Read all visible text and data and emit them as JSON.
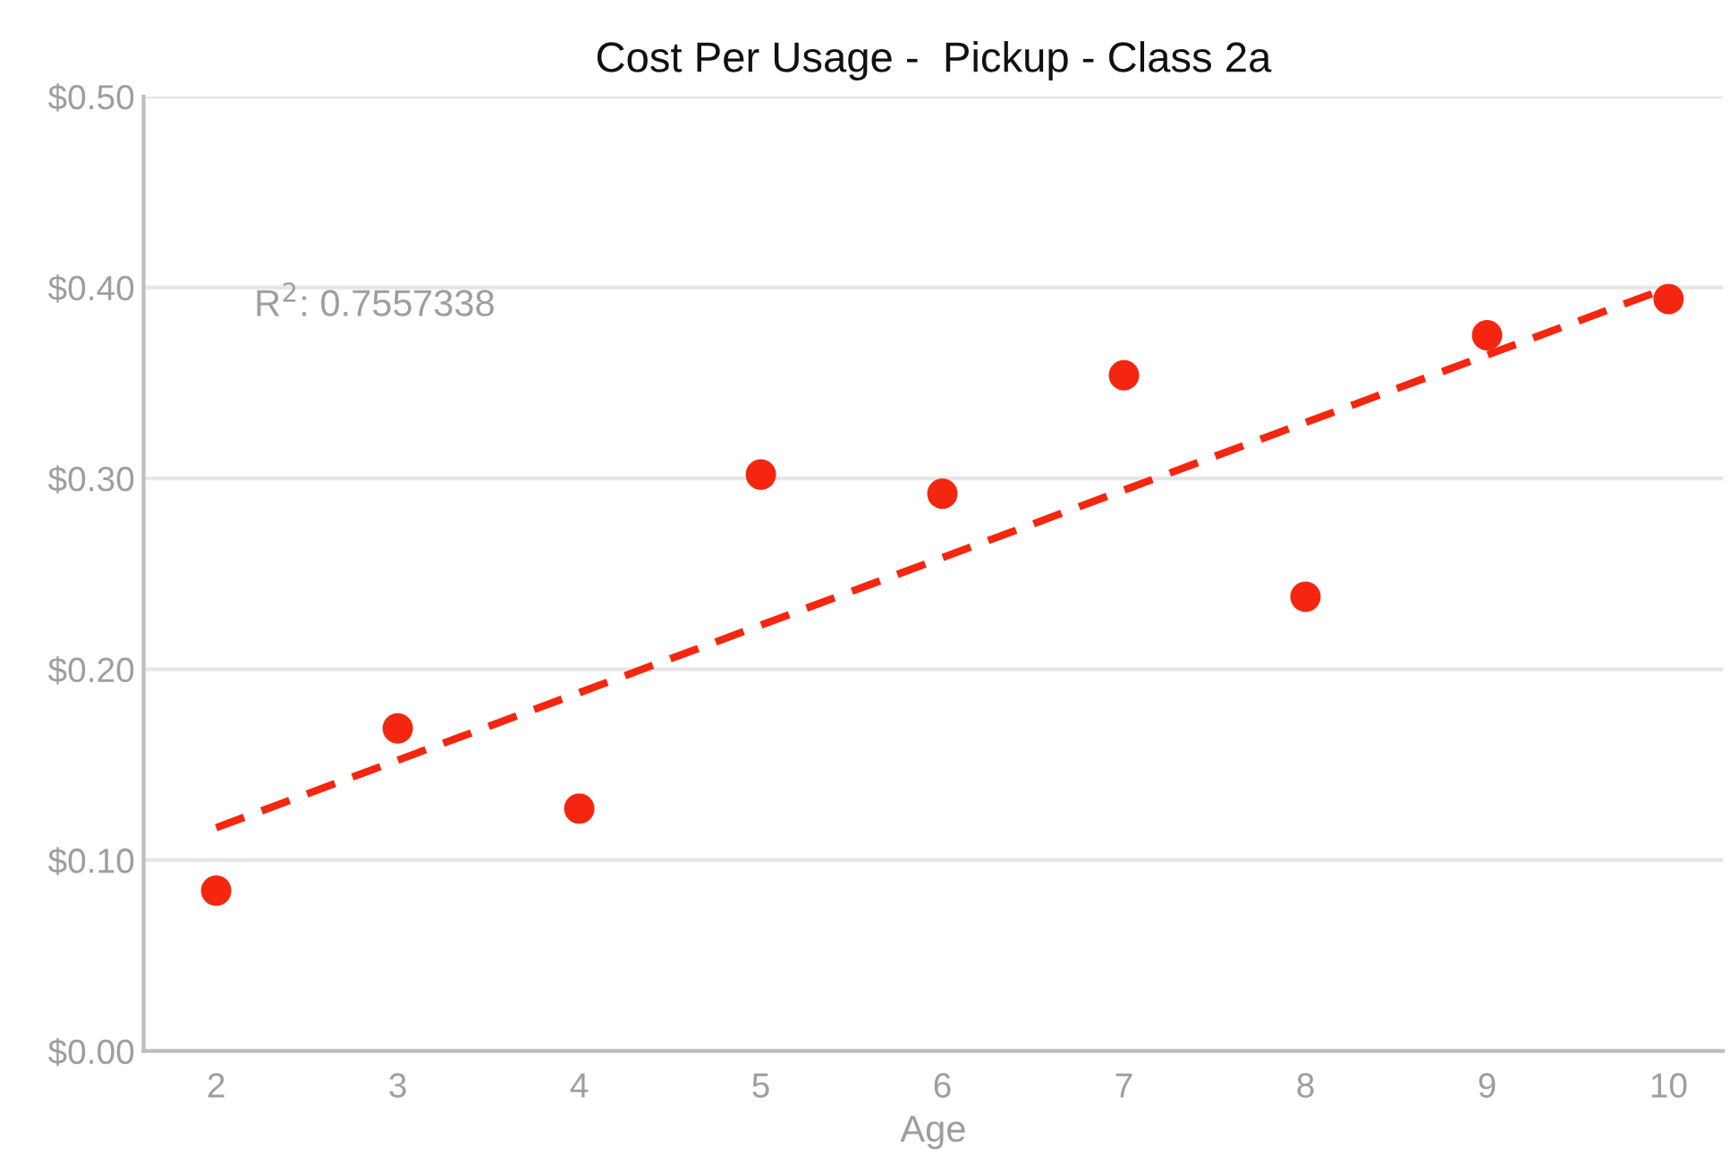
{
  "chart_data": {
    "type": "scatter",
    "title": "Cost Per Usage -  Pickup - Class 2a",
    "xlabel": "Age",
    "x": [
      2,
      3,
      4,
      5,
      6,
      7,
      8,
      9,
      10
    ],
    "series": [
      {
        "color": "#f5260f",
        "values": [
          0.084,
          0.169,
          0.127,
          0.302,
          0.292,
          0.354,
          0.238,
          0.375,
          0.394
        ],
        "marker": "circle"
      },
      {
        "type": "line",
        "color": "#f5260f",
        "x": [
          2,
          10
        ],
        "values": [
          0.117,
          0.4
        ],
        "line_style": "dashed",
        "marker": "none"
      }
    ],
    "xlim": [
      1.6,
      10.3
    ],
    "xticks": [
      2,
      3,
      4,
      5,
      6,
      7,
      8,
      9,
      10
    ],
    "ylim": [
      0,
      0.5
    ],
    "yticks": [
      {
        "value": 0,
        "label": "$0.00"
      },
      {
        "value": 0.1,
        "label": "$0.10"
      },
      {
        "value": 0.2,
        "label": "$0.20"
      },
      {
        "value": 0.3,
        "label": "$0.30"
      },
      {
        "value": 0.4,
        "label": "$0.40"
      },
      {
        "value": 0.5,
        "label": "$0.50"
      }
    ],
    "grid": "y",
    "legend": false,
    "annotations": [
      "R$^{2}$: 0.7557338"
    ]
  }
}
